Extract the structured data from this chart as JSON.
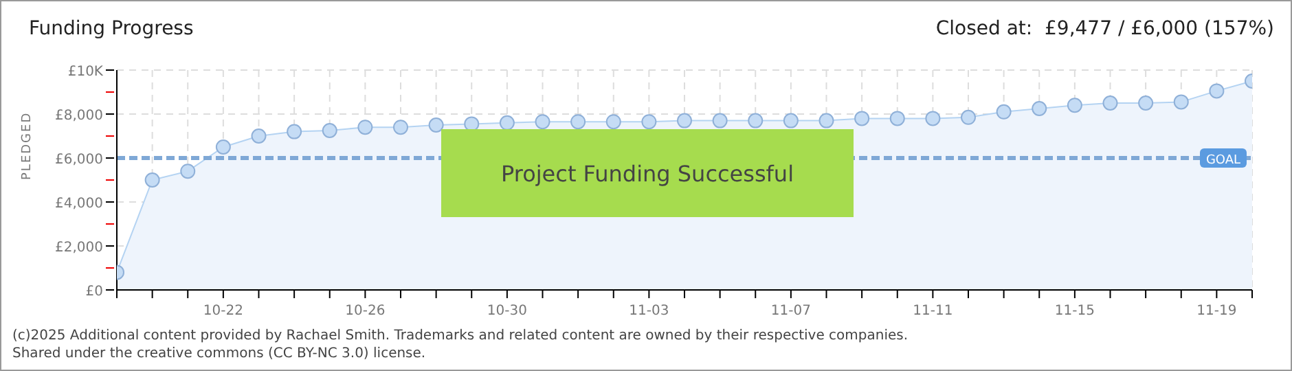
{
  "chart_data": {
    "type": "area",
    "title": "Funding Progress",
    "subtitle": "Closed at:  £9,477 / £6,000 (157%)",
    "ylabel": "PLEDGED",
    "annotations": [
      "Project Funding Successful",
      "(c)2025 Additional content provided by Rachael Smith. Trademarks and related content are owned by their respective companies.",
      "Shared under the creative commons (CC BY-NC 3.0) license."
    ],
    "categories": [
      null,
      null,
      null,
      "10-22",
      null,
      null,
      null,
      "10-26",
      null,
      null,
      null,
      "10-30",
      null,
      null,
      null,
      "11-03",
      null,
      null,
      null,
      "11-07",
      null,
      null,
      null,
      "11-11",
      null,
      null,
      null,
      "11-15",
      null,
      null,
      null,
      "11-19",
      null
    ],
    "series": [
      {
        "color": "#b4d3f2",
        "values": [
          800,
          5000,
          5400,
          6500,
          7000,
          7200,
          7250,
          7400,
          7400,
          7500,
          7550,
          7600,
          7650,
          7650,
          7650,
          7650,
          7700,
          7700,
          7700,
          7700,
          7700,
          7800,
          7800,
          7800,
          7850,
          8100,
          8250,
          8400,
          8500,
          8500,
          8550,
          9050,
          9500
        ]
      }
    ],
    "ylim": [
      0,
      10000
    ],
    "yticks": [
      {
        "value": 0,
        "label": "£0"
      },
      {
        "value": 1000,
        "label": null
      },
      {
        "value": 2000,
        "label": "£2,000"
      },
      {
        "value": 3000,
        "label": null
      },
      {
        "value": 4000,
        "label": "£4,000"
      },
      {
        "value": 5000,
        "label": null
      },
      {
        "value": 6000,
        "label": "£6,000"
      },
      {
        "value": 7000,
        "label": null
      },
      {
        "value": 8000,
        "label": "£8,000"
      },
      {
        "value": 9000,
        "label": null
      },
      {
        "value": 10000,
        "label": "£10K"
      }
    ],
    "ref_lines": [
      {
        "axis": "y",
        "value": 6000,
        "label": "GOAL",
        "color": "#7fa8d6",
        "line_style": "dashed"
      }
    ],
    "grid": true,
    "marker": "circle"
  }
}
